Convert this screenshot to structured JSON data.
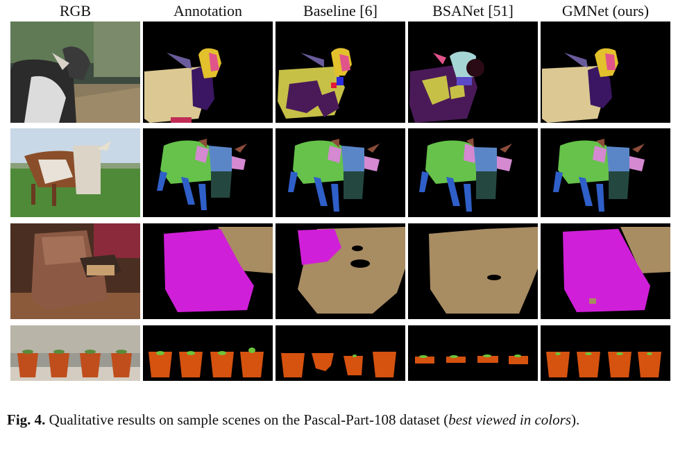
{
  "columns": [
    {
      "key": "rgb",
      "label": "RGB"
    },
    {
      "key": "annotation",
      "label": "Annotation"
    },
    {
      "key": "baseline",
      "label": "Baseline [6]"
    },
    {
      "key": "bsanet",
      "label": "BSANet [51]"
    },
    {
      "key": "gmnet",
      "label": "GMNet (ours)"
    }
  ],
  "rows": [
    {
      "scene": "goat"
    },
    {
      "scene": "cow"
    },
    {
      "scene": "armchair"
    },
    {
      "scene": "potted-plants"
    }
  ],
  "caption": {
    "label": "Fig. 4.",
    "text_before": " Qualitative results on sample scenes on the Pascal-Part-108 dataset (",
    "italic": "best viewed in colors",
    "text_after": ")."
  },
  "colors": {
    "background": "#000000",
    "body_tan": "#dcc893",
    "head_yellow": "#e2c12c",
    "ear_purple": "#6a5c9b",
    "nose_pink": "#e0548a",
    "neck_indigo": "#3b1662",
    "torso_green": "#66c24a",
    "leg_blue": "#2f5fc8",
    "cow_head_blue": "#5a86c8",
    "cow_ear_pink": "#d489d1",
    "horn_brown": "#8c4c3a",
    "cow_neck_teal": "#24483f",
    "chair_magenta": "#d01fd8",
    "chair_tan": "#a88c62",
    "pot_orange": "#d6520f",
    "plant_green": "#6fc33a"
  }
}
